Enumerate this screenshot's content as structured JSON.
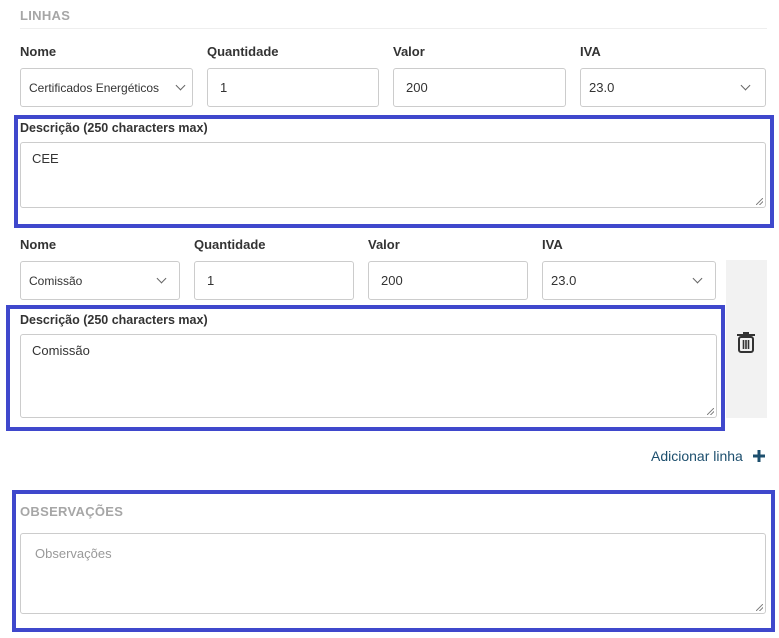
{
  "linhas": {
    "section_title": "LINHAS",
    "lines": [
      {
        "nome_label": "Nome",
        "nome_value": "Certificados Energéticos",
        "quantidade_label": "Quantidade",
        "quantidade_value": "1",
        "valor_label": "Valor",
        "valor_value": "200",
        "iva_label": "IVA",
        "iva_value": "23.0",
        "descricao_label": "Descrição (250 characters max)",
        "descricao_value": "CEE"
      },
      {
        "nome_label": "Nome",
        "nome_value": "Comissão",
        "quantidade_label": "Quantidade",
        "quantidade_value": "1",
        "valor_label": "Valor",
        "valor_value": "200",
        "iva_label": "IVA",
        "iva_value": "23.0",
        "descricao_label": "Descrição (250 characters max)",
        "descricao_value": "Comissão",
        "delete_icon": "trash-icon"
      }
    ],
    "add_line_label": "Adicionar linha",
    "add_icon": "plus-icon"
  },
  "observacoes": {
    "section_title": "OBSERVAÇÕES",
    "placeholder": "Observações"
  },
  "colors": {
    "highlight": "#3f48cc",
    "link": "#1d4f6e",
    "section_title": "#a6a6a6"
  }
}
